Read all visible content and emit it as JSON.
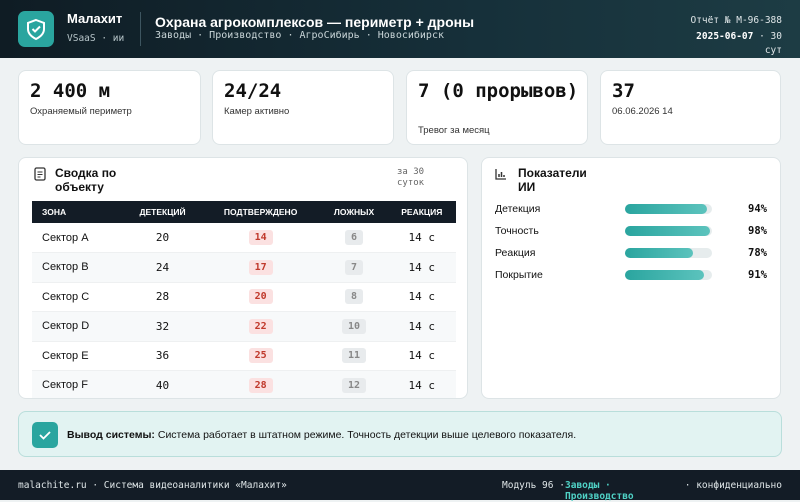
{
  "header": {
    "brand": "Малахит",
    "brand_sub": "VSaaS · ии",
    "title": "Охрана агрокомплексов — периметр + дроны",
    "breadcrumbs": "Заводы · Производство · АгроСибирь · Новосибирск",
    "report_id": "Отчёт № М-96-388",
    "date": "2025-06-07",
    "period": "· 30 сут"
  },
  "kpis": [
    {
      "value": "2 400 м",
      "label": "Охраняемый периметр"
    },
    {
      "value": "24/24",
      "label": "Камер активно"
    },
    {
      "value": "7 (0 прорывов)",
      "label": "Тревог за месяц"
    },
    {
      "value": "37",
      "label": "06.06.2026 14"
    }
  ],
  "table": {
    "title": "Сводка по объекту",
    "period": "за 30 суток",
    "columns": [
      "ЗОНА",
      "ДЕТЕКЦИЙ",
      "ПОДТВЕРЖДЕНО",
      "ЛОЖНЫХ",
      "РЕАКЦИЯ"
    ],
    "rows": [
      [
        "Сектор A",
        20,
        14,
        6,
        "14 с"
      ],
      [
        "Сектор B",
        24,
        17,
        7,
        "14 с"
      ],
      [
        "Сектор C",
        28,
        20,
        8,
        "14 с"
      ],
      [
        "Сектор D",
        32,
        22,
        10,
        "14 с"
      ],
      [
        "Сектор E",
        36,
        25,
        11,
        "14 с"
      ],
      [
        "Сектор F",
        40,
        28,
        12,
        "14 с"
      ]
    ]
  },
  "metrics": {
    "title": "Показатели ИИ",
    "items": [
      {
        "label": "Детекция",
        "value": 94,
        "value_label": "94%"
      },
      {
        "label": "Точность",
        "value": 98,
        "value_label": "98%"
      },
      {
        "label": "Реакция",
        "value": 78,
        "value_label": "78%"
      },
      {
        "label": "Покрытие",
        "value": 91,
        "value_label": "91%"
      }
    ]
  },
  "alert": {
    "title": "Вывод системы:",
    "text": "Система работает в штатном режиме. Точность детекции выше целевого показателя."
  },
  "footer": {
    "left": "malachite.ru · Система видеоаналитики «Малахит»",
    "module": "Модуль 96 ·",
    "link": "Заводы · Производство",
    "right": "· конфиденциально"
  }
}
